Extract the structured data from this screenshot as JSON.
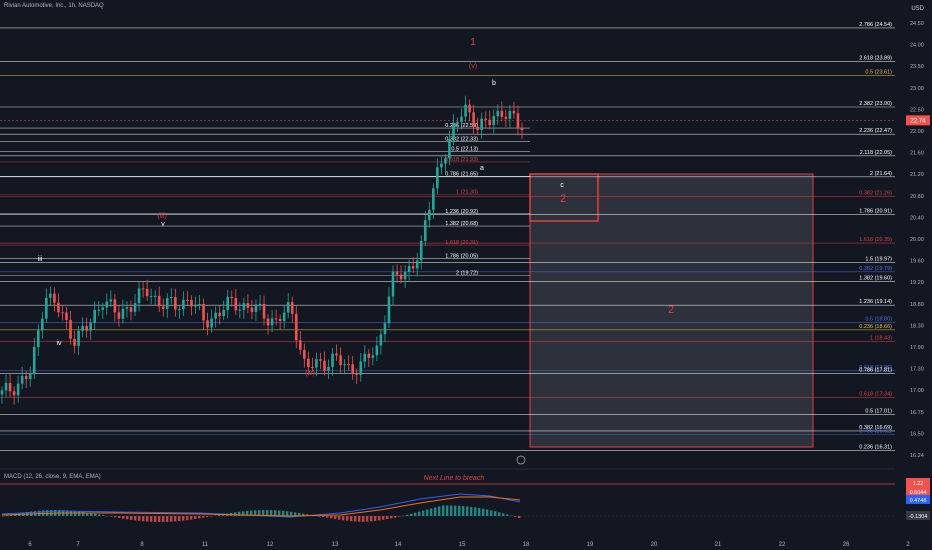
{
  "header": {
    "symbol_title": "Rivian Automotive, Inc., 1h, NASDAQ"
  },
  "price_axis": {
    "currency": "USD",
    "ticks": [
      "24.50",
      "24.00",
      "23.50",
      "23.00",
      "22.50",
      "22.00",
      "21.60",
      "21.20",
      "20.80",
      "20.40",
      "20.00",
      "19.60",
      "19.20",
      "18.80",
      "18.30",
      "17.90",
      "17.30",
      "17.00",
      "16.75",
      "16.50",
      "16.24"
    ],
    "current_price_badge": "22.74"
  },
  "time_axis": {
    "ticks": [
      "6",
      "7",
      "8",
      "11",
      "12",
      "13",
      "14",
      "15",
      "18",
      "19",
      "20",
      "21",
      "22",
      "26",
      "2"
    ]
  },
  "wave_labels": {
    "wave_1": "1",
    "wave_v_paren": "(v)",
    "wave_b": "b",
    "wave_a": "a",
    "wave_c": "c",
    "wave_2_small": "2",
    "wave_2_big": "2",
    "wave_iii_paren": "(iii)",
    "wave_iii": "iii",
    "wave_v": "v",
    "wave_iv": "iv",
    "wave_iv_paren": "(iv)"
  },
  "fib_levels_right": [
    {
      "text": "2.786 (24.54)",
      "color": "#ffffff"
    },
    {
      "text": "2.618 (23.89)",
      "color": "#ffffff"
    },
    {
      "text": "0.5 (23.61)",
      "color": "#f0c040"
    },
    {
      "text": "2.382 (23.00)",
      "color": "#ffffff"
    },
    {
      "text": "2.236 (22.47)",
      "color": "#ffffff"
    },
    {
      "text": "2.118 (22.05)",
      "color": "#ffffff"
    },
    {
      "text": "2 (21.64)",
      "color": "#ffffff"
    },
    {
      "text": "0.382 (21.26)",
      "color": "#e04040"
    },
    {
      "text": "1.786 (20.91)",
      "color": "#ffffff"
    },
    {
      "text": "1.618 (20.35)",
      "color": "#e04040"
    },
    {
      "text": "1.5 (19.97)",
      "color": "#ffffff"
    },
    {
      "text": "0.382 (19.79)",
      "color": "#5070e0"
    },
    {
      "text": "1.382 (19.60)",
      "color": "#ffffff"
    },
    {
      "text": "1.236 (19.14)",
      "color": "#ffffff"
    },
    {
      "text": "0.5 (18.80)",
      "color": "#5070e0"
    },
    {
      "text": "0.236 (18.66)",
      "color": "#f0c040"
    },
    {
      "text": "1 (18.43)",
      "color": "#e04040"
    },
    {
      "text": "0.618 (17.86)",
      "color": "#5070e0"
    },
    {
      "text": "0.786 (17.81)",
      "color": "#ffffff"
    },
    {
      "text": "0.618 (17.34)",
      "color": "#e04040"
    },
    {
      "text": "0.5 (17.01)",
      "color": "#ffffff"
    },
    {
      "text": "0.382 (16.69)",
      "color": "#ffffff"
    },
    {
      "text": "0.786 (16.62)",
      "color": "#5070e0"
    },
    {
      "text": "0.236 (16.31)",
      "color": "#ffffff"
    }
  ],
  "fib_levels_mid": [
    {
      "text": "0.236 (22.59)",
      "color": "#ffffff"
    },
    {
      "text": "0.382 (22.33)",
      "color": "#ffffff"
    },
    {
      "text": "0.5 (22.13)",
      "color": "#ffffff"
    },
    {
      "text": "0.618 (21.93)",
      "color": "#e04040"
    },
    {
      "text": "0.786 (21.65)",
      "color": "#ffffff"
    },
    {
      "text": "1 (21.30)",
      "color": "#e04040"
    },
    {
      "text": "1.236 (20.92)",
      "color": "#ffffff"
    },
    {
      "text": "1.382 (20.68)",
      "color": "#ffffff"
    },
    {
      "text": "1.618 (20.31)",
      "color": "#e04040"
    },
    {
      "text": "1.786 (20.05)",
      "color": "#ffffff"
    },
    {
      "text": "2 (19.72)",
      "color": "#ffffff"
    }
  ],
  "macd": {
    "title": "MACD (12, 26, close, 9, EMA, EMA)",
    "annotation": "Next Line to breach",
    "badges": [
      "1.22",
      "0.6044",
      "0.4748",
      "-0.1304"
    ]
  },
  "chart_data": {
    "type": "candlestick",
    "ylim": [
      16.2,
      24.7
    ],
    "approx_ohlc_path": [
      17.4,
      17.6,
      17.8,
      19.4,
      19.0,
      18.5,
      18.7,
      19.3,
      18.9,
      19.2,
      19.4,
      19.2,
      19.1,
      19.3,
      18.8,
      19.0,
      19.2,
      19.1,
      19.0,
      18.8,
      19.1,
      17.9,
      18.0,
      18.1,
      17.9,
      18.0,
      18.3,
      19.6,
      19.8,
      20.2,
      21.7,
      22.3,
      23.1,
      22.5,
      22.9,
      22.8,
      22.7
    ]
  }
}
